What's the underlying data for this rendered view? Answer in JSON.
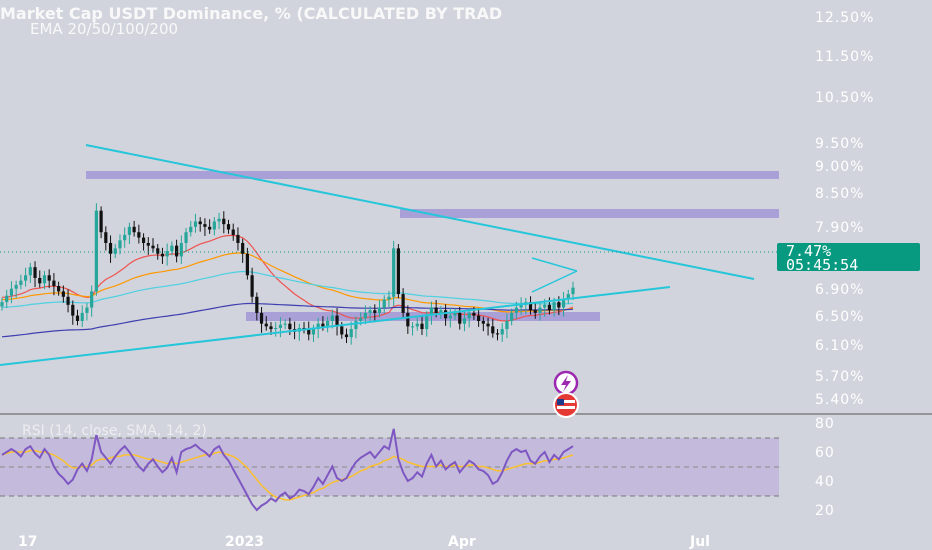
{
  "header": {
    "title": "Market Cap USDT Dominance, % (CALCULATED BY TRAD",
    "subtitle": "EMA 20/50/100/200"
  },
  "price_label": {
    "value": "7.47%",
    "countdown": "05:45:54"
  },
  "rsi_title": "RSI (14, close, SMA, 14, 2)",
  "colors": {
    "background": "#d1d4dc",
    "bull": "#26a69a",
    "bear": "#111111",
    "trendline": "#26c6da",
    "zone": "#9a8fd4",
    "ema20": "#ef5350",
    "ema50": "#ff9800",
    "ema100": "#4dd0e1",
    "ema200": "#3f3fb0",
    "rsi": "#7e57c2",
    "rsi_ma": "#fbc02d",
    "price_badge": "#089981"
  },
  "icons": [
    "lightning-icon",
    "us-flag-icon"
  ],
  "chart_data": [
    {
      "type": "candlestick",
      "title": "Market Cap USDT Dominance, % (CALCULATED BY TRAD",
      "subtitle": "EMA 20/50/100/200",
      "y_ticks": [
        "12.50%",
        "11.50%",
        "10.50%",
        "9.50%",
        "9.00%",
        "8.50%",
        "7.90%",
        "6.90%",
        "6.50%",
        "6.10%",
        "5.70%",
        "5.40%"
      ],
      "x_ticks": [
        "17",
        "2023",
        "Apr",
        "Jul"
      ],
      "last_price": "7.47%",
      "countdown": "05:45:54",
      "series": [
        {
          "name": "EMA 20"
        },
        {
          "name": "EMA 50"
        },
        {
          "name": "EMA 100"
        },
        {
          "name": "EMA 200"
        }
      ],
      "closes": [
        7.2,
        7.32,
        7.45,
        7.52,
        7.6,
        7.7,
        7.85,
        7.65,
        7.55,
        7.7,
        7.6,
        7.5,
        7.4,
        7.3,
        7.15,
        6.95,
        6.85,
        7.0,
        7.1,
        7.4,
        8.9,
        8.5,
        8.3,
        8.1,
        8.2,
        8.35,
        8.45,
        8.6,
        8.5,
        8.4,
        8.3,
        8.25,
        8.2,
        8.1,
        8.05,
        8.15,
        8.25,
        8.05,
        8.3,
        8.5,
        8.6,
        8.7,
        8.65,
        8.6,
        8.55,
        8.7,
        8.75,
        8.65,
        8.55,
        8.45,
        8.3,
        8.1,
        7.7,
        7.3,
        7.0,
        6.8,
        6.75,
        6.7,
        6.72,
        6.78,
        6.8,
        6.7,
        6.65,
        6.72,
        6.7,
        6.6,
        6.7,
        6.8,
        6.75,
        6.85,
        6.95,
        6.75,
        6.6,
        6.55,
        6.7,
        6.85,
        6.9,
        7.0,
        7.05,
        7.0,
        7.1,
        7.25,
        7.3,
        8.2,
        7.35,
        7.0,
        6.75,
        6.75,
        6.8,
        6.7,
        6.95,
        7.1,
        7.0,
        7.05,
        6.9,
        6.95,
        7.0,
        6.8,
        6.9,
        7.0,
        6.95,
        6.85,
        6.8,
        6.75,
        6.62,
        6.6,
        6.7,
        6.85,
        7.0,
        7.1,
        7.15,
        7.2,
        7.05,
        7.0,
        7.1,
        7.15,
        7.05,
        7.2,
        7.1,
        7.25,
        7.35,
        7.47
      ],
      "y_range": [
        5.3,
        12.8
      ]
    },
    {
      "type": "line",
      "title": "RSI (14, close, SMA, 14, 2)",
      "y_ticks": [
        80,
        60,
        40,
        20
      ],
      "y_range": [
        14,
        82
      ],
      "bands": [
        70,
        50,
        30
      ],
      "series": [
        {
          "name": "RSI",
          "values": [
            58,
            60,
            62,
            60,
            57,
            62,
            64,
            59,
            56,
            62,
            58,
            50,
            45,
            42,
            38,
            41,
            48,
            52,
            47,
            55,
            72,
            60,
            56,
            52,
            57,
            61,
            64,
            60,
            55,
            50,
            47,
            52,
            55,
            50,
            46,
            49,
            56,
            46,
            60,
            62,
            63,
            65,
            62,
            60,
            57,
            62,
            64,
            58,
            54,
            48,
            42,
            36,
            30,
            24,
            20,
            23,
            25,
            28,
            26,
            30,
            32,
            28,
            30,
            34,
            33,
            31,
            36,
            42,
            38,
            44,
            50,
            42,
            40,
            42,
            48,
            53,
            56,
            58,
            60,
            56,
            60,
            64,
            62,
            76,
            55,
            46,
            40,
            42,
            46,
            43,
            52,
            58,
            50,
            54,
            48,
            51,
            53,
            46,
            50,
            54,
            52,
            48,
            47,
            44,
            38,
            40,
            46,
            54,
            60,
            62,
            60,
            61,
            54,
            52,
            57,
            60,
            53,
            58,
            55,
            60,
            62,
            64
          ]
        },
        {
          "name": "RSI-based MA",
          "values": [
            58,
            59,
            60,
            60,
            60,
            60,
            61,
            61,
            60,
            60,
            59,
            58,
            56,
            54,
            51,
            49,
            49,
            50,
            50,
            51,
            54,
            55,
            55,
            56,
            57,
            57,
            58,
            58,
            58,
            57,
            56,
            55,
            55,
            54,
            53,
            52,
            53,
            52,
            53,
            54,
            55,
            56,
            57,
            58,
            58,
            59,
            60,
            59,
            58,
            57,
            55,
            52,
            49,
            45,
            41,
            37,
            34,
            31,
            29,
            28,
            27,
            27,
            28,
            29,
            30,
            31,
            32,
            34,
            35,
            37,
            39,
            40,
            41,
            42,
            43,
            45,
            47,
            48,
            50,
            51,
            52,
            54,
            55,
            57,
            56,
            55,
            53,
            52,
            51,
            50,
            50,
            50,
            50,
            51,
            50,
            50,
            51,
            50,
            50,
            51,
            51,
            50,
            50,
            49,
            48,
            47,
            47,
            48,
            49,
            50,
            51,
            52,
            52,
            52,
            53,
            54,
            54,
            55,
            55,
            56,
            57,
            58
          ]
        }
      ]
    }
  ]
}
